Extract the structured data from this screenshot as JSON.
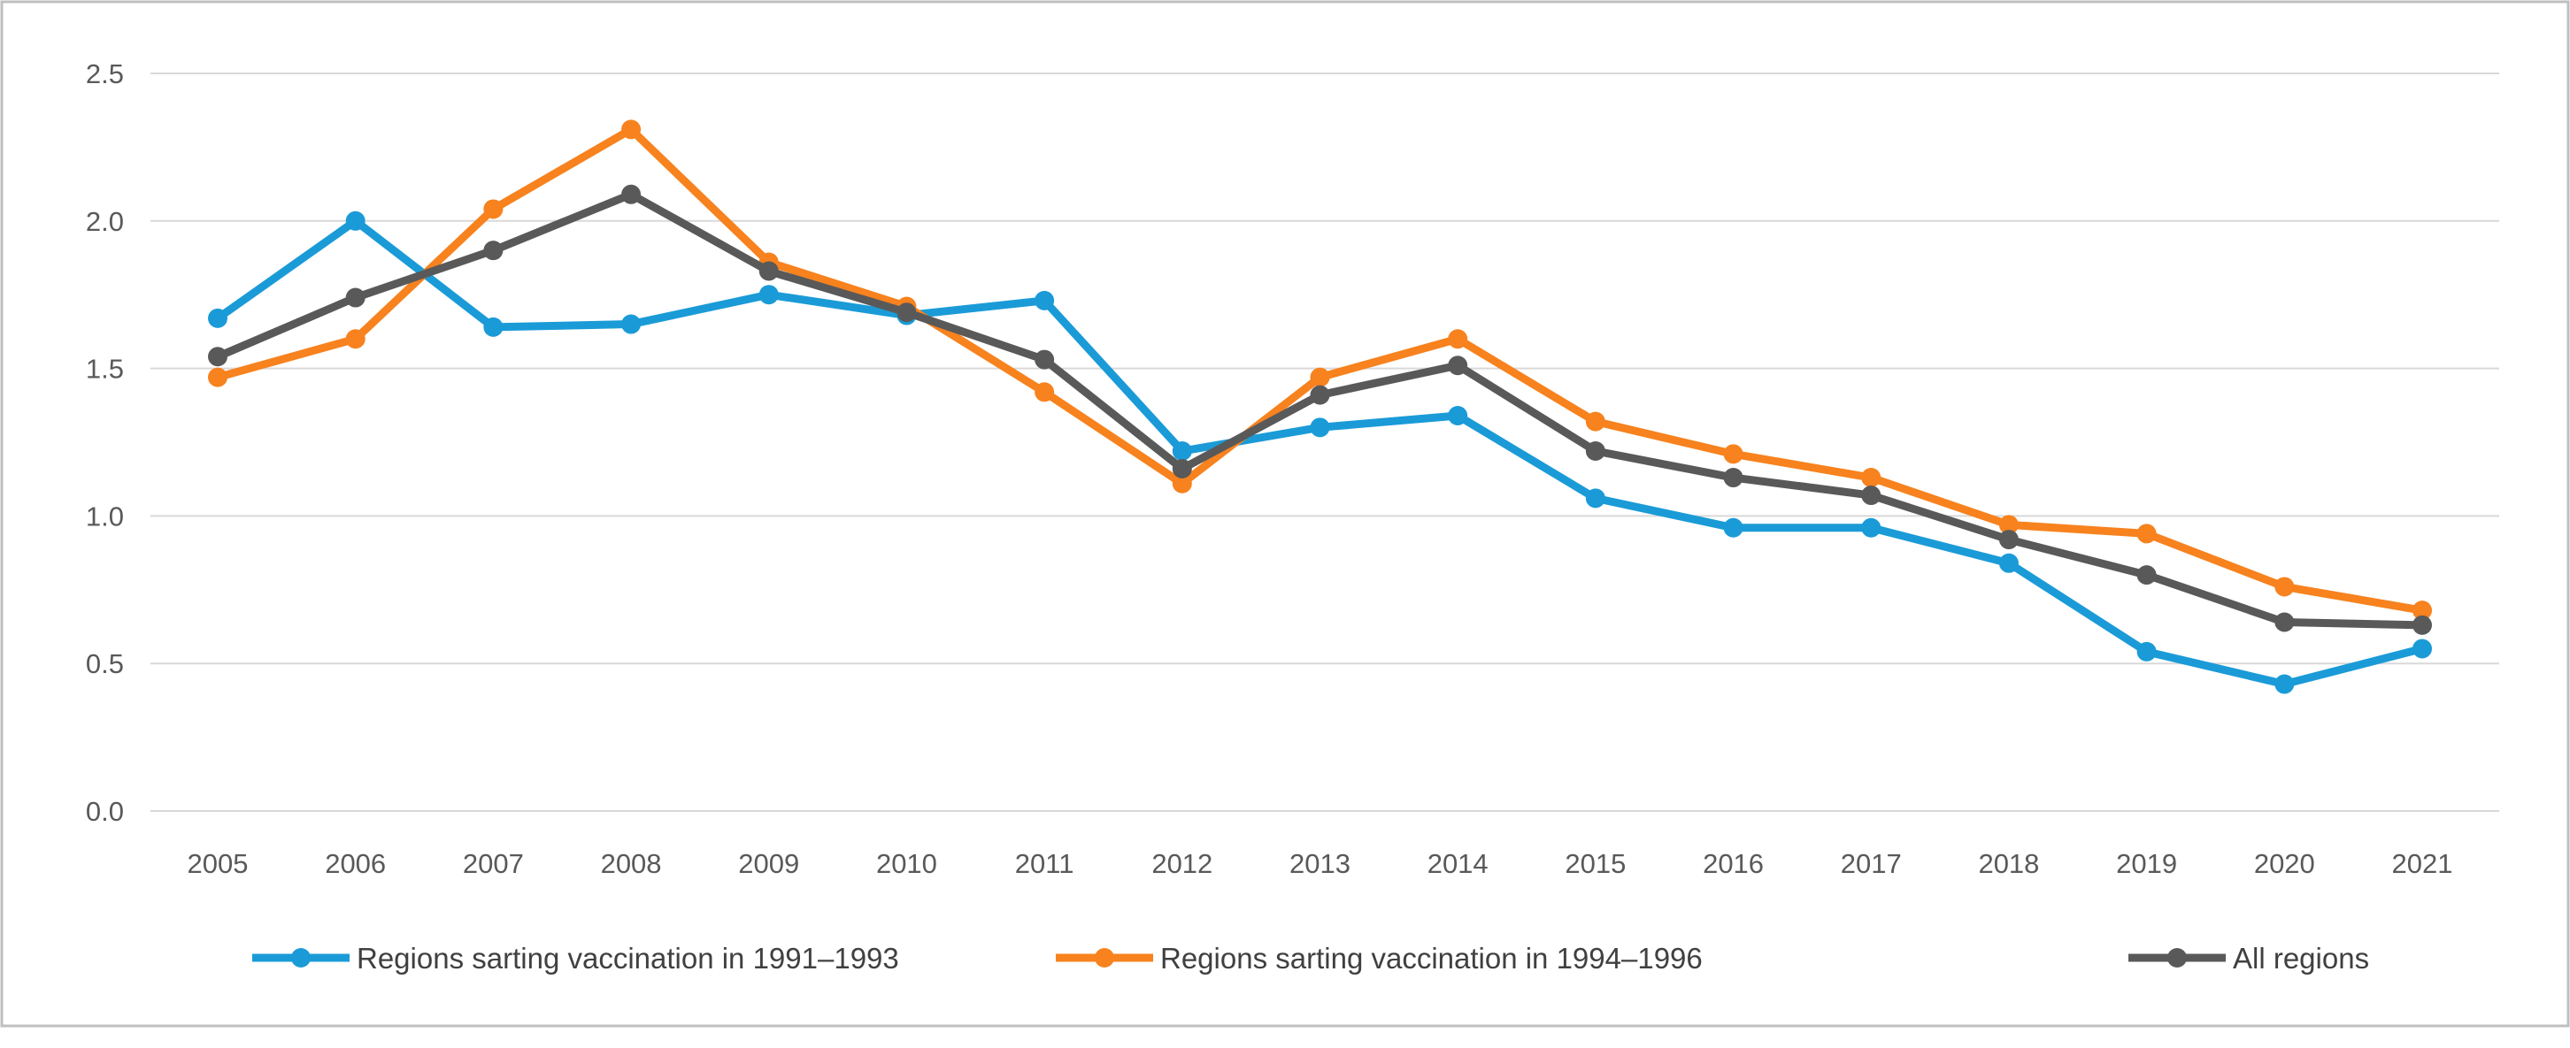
{
  "chart_data": {
    "type": "line",
    "title": "",
    "xlabel": "",
    "ylabel": "",
    "ylim": [
      0,
      2.5
    ],
    "yticks": [
      "0.0",
      "0.5",
      "1.0",
      "1.5",
      "2.0",
      "2.5"
    ],
    "grid": true,
    "legend_position": "bottom",
    "categories": [
      "2005",
      "2006",
      "2007",
      "2008",
      "2009",
      "2010",
      "2011",
      "2012",
      "2013",
      "2014",
      "2015",
      "2016",
      "2017",
      "2018",
      "2019",
      "2020",
      "2021"
    ],
    "series": [
      {
        "name": "Regions sarting vaccination in 1991–1993",
        "color": "#1a9bd7",
        "values": [
          1.67,
          2.0,
          1.64,
          1.65,
          1.75,
          1.68,
          1.73,
          1.22,
          1.3,
          1.34,
          1.06,
          0.96,
          0.96,
          0.84,
          0.54,
          0.43,
          0.55
        ]
      },
      {
        "name": "Regions sarting vaccination in 1994–1996",
        "color": "#f7821e",
        "values": [
          1.47,
          1.6,
          2.04,
          2.31,
          1.86,
          1.71,
          1.42,
          1.11,
          1.47,
          1.6,
          1.32,
          1.21,
          1.13,
          0.97,
          0.94,
          0.76,
          0.68
        ]
      },
      {
        "name": "All regions",
        "color": "#595959",
        "values": [
          1.54,
          1.74,
          1.9,
          2.09,
          1.83,
          1.69,
          1.53,
          1.16,
          1.41,
          1.51,
          1.22,
          1.13,
          1.07,
          0.92,
          0.8,
          0.64,
          0.63
        ]
      }
    ]
  }
}
